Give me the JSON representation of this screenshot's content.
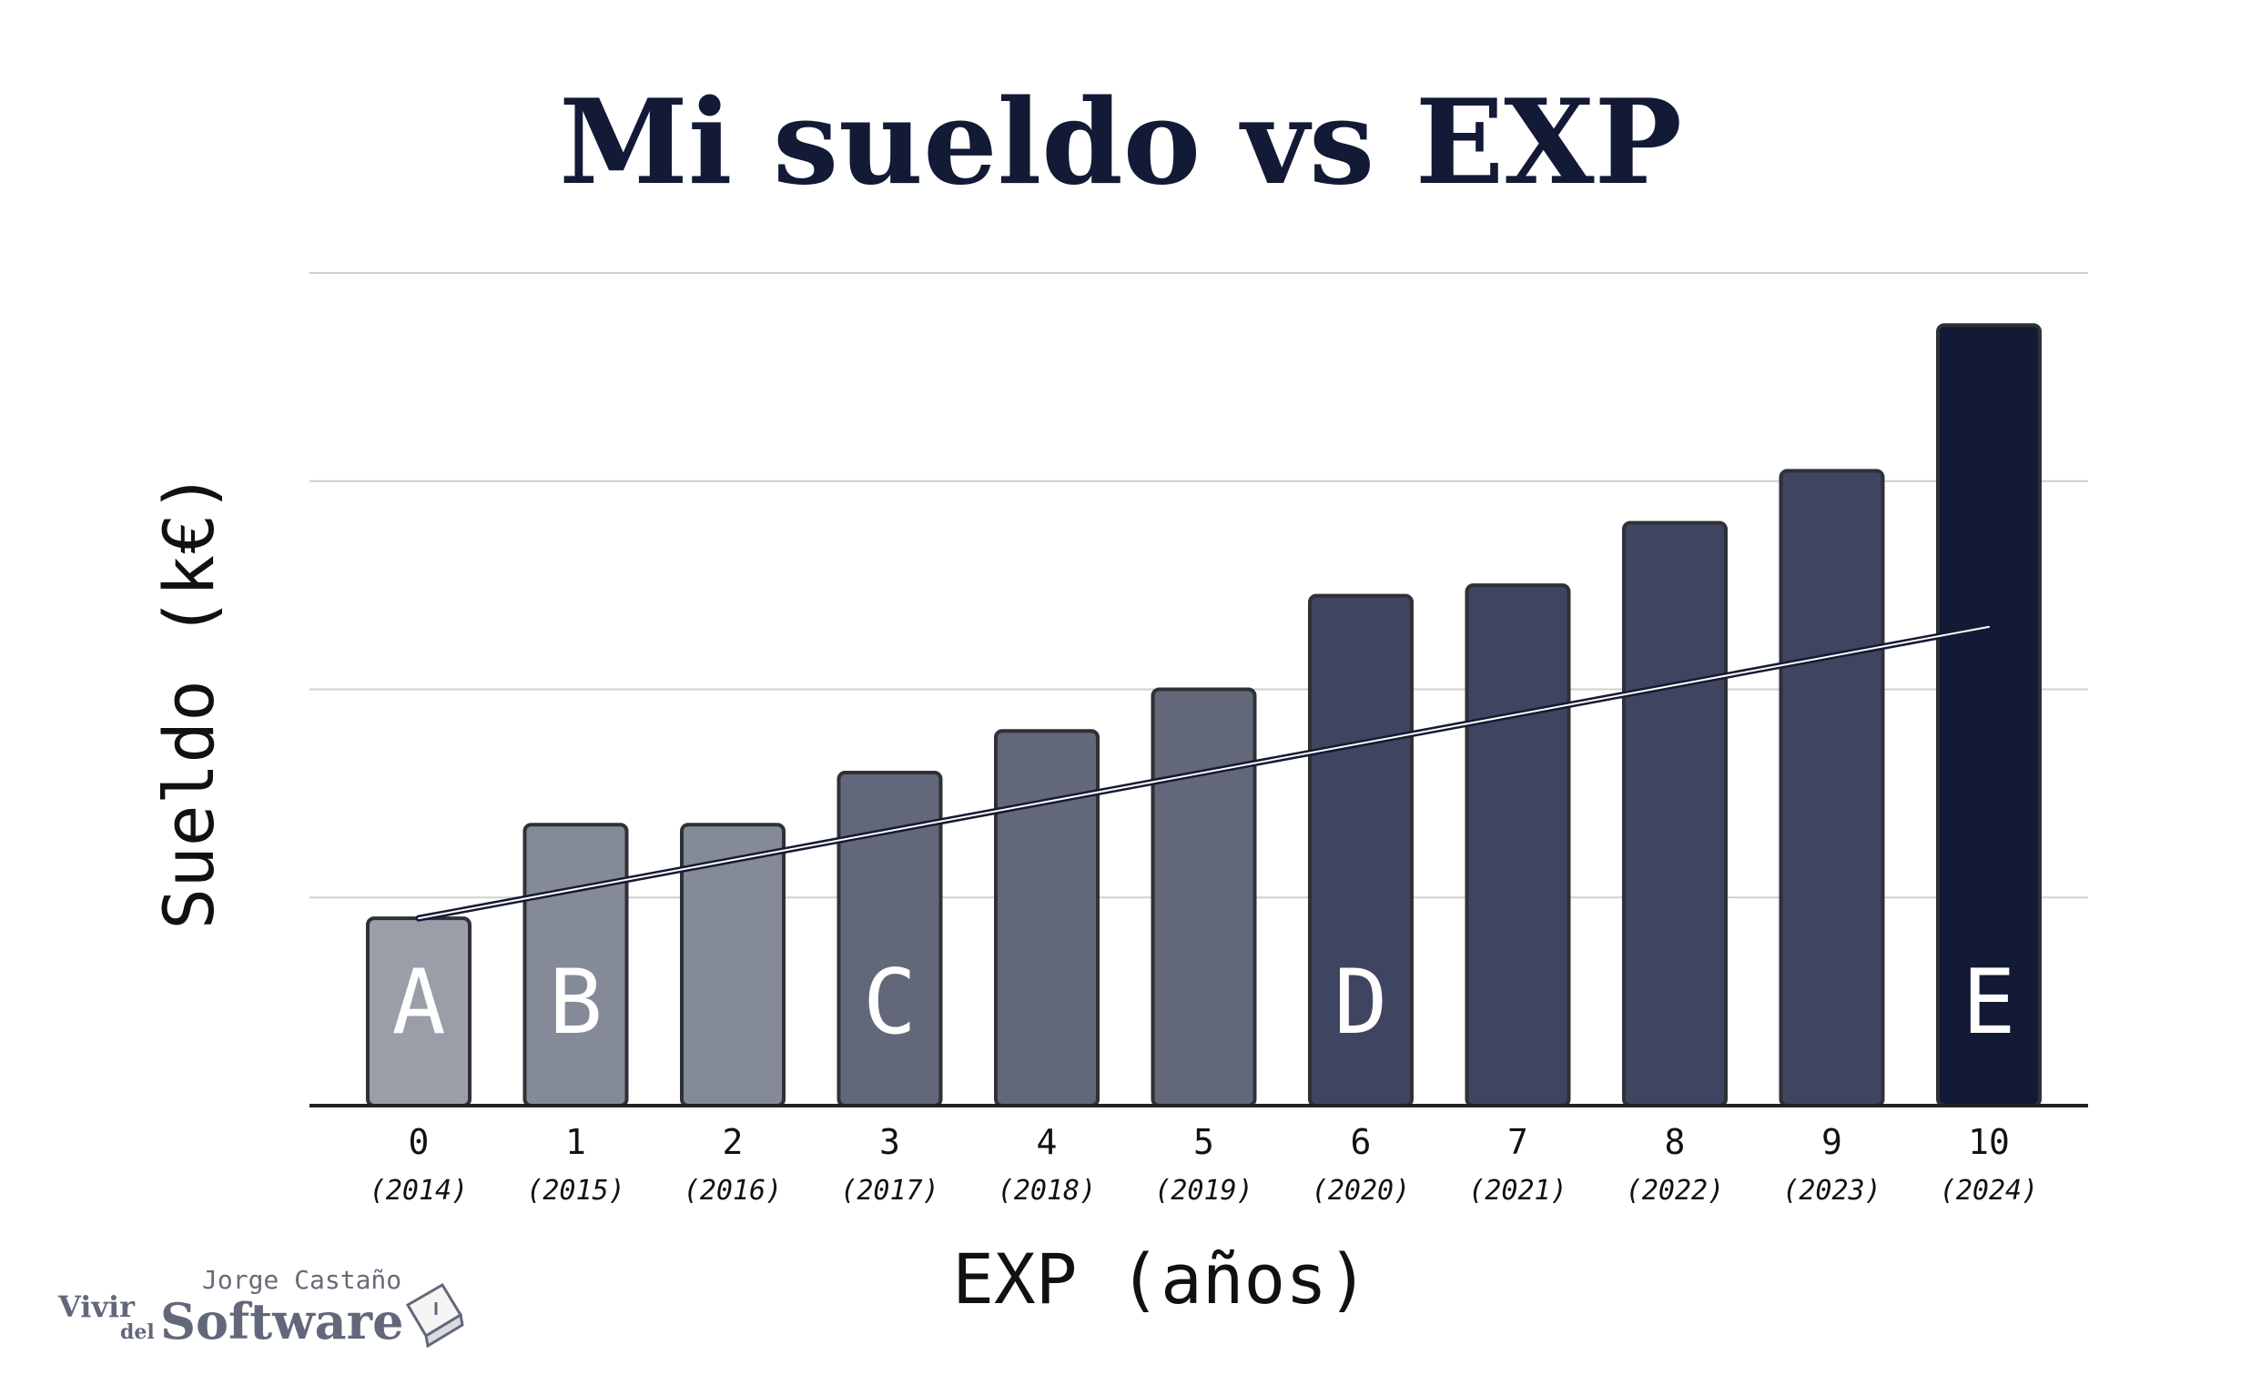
{
  "chart_data": {
    "type": "bar",
    "title": "Mi sueldo vs EXP",
    "xlabel": "EXP (años)",
    "ylabel": "Sueldo (k€)",
    "categories": [
      "0",
      "1",
      "2",
      "3",
      "4",
      "5",
      "6",
      "7",
      "8",
      "9",
      "10"
    ],
    "year_labels": [
      "(2014)",
      "(2015)",
      "(2016)",
      "(2017)",
      "(2018)",
      "(2019)",
      "(2020)",
      "(2021)",
      "(2022)",
      "(2023)",
      "(2024)"
    ],
    "values": [
      18,
      27,
      27,
      32,
      36,
      40,
      49,
      50,
      56,
      61,
      75
    ],
    "bar_letters": [
      "A",
      "B",
      "",
      "C",
      "",
      "",
      "D",
      "",
      "",
      "",
      "E"
    ],
    "bar_colors": [
      "#9a9ea9",
      "#858a98",
      "#858a98",
      "#626879",
      "#626879",
      "#626879",
      "#3f4560",
      "#3f4560",
      "#3f4560",
      "#3f4560",
      "#131a35"
    ],
    "trendline": {
      "x0": 0,
      "y0": 18,
      "x1": 10,
      "y1": 46
    },
    "ylim": [
      0,
      80
    ],
    "gridlines": [
      20,
      40,
      60,
      80
    ],
    "grid": true,
    "legend": "none"
  },
  "watermark": {
    "author": "Jorge Castaño",
    "brand_part1": "Vivir",
    "brand_part2": "del",
    "brand_part3": "Software"
  }
}
